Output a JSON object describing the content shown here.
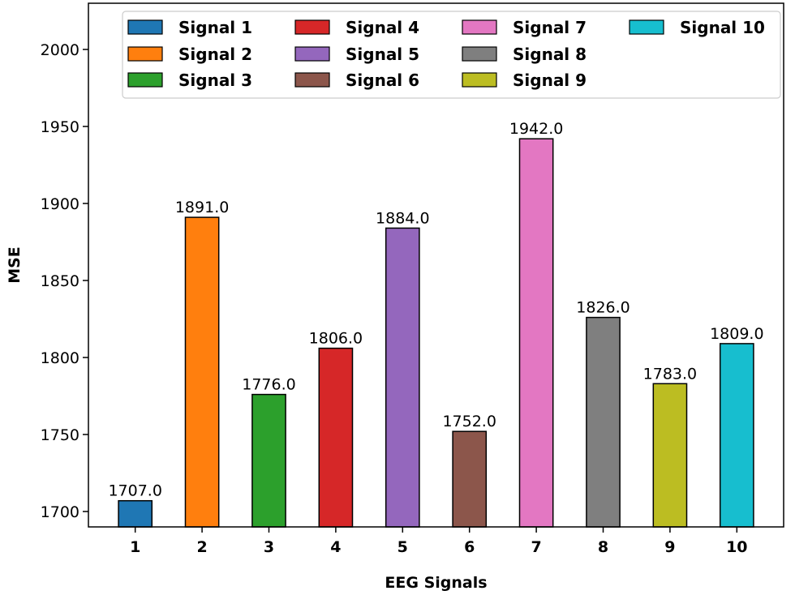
{
  "chart_data": {
    "type": "bar",
    "categories": [
      "1",
      "2",
      "3",
      "4",
      "5",
      "6",
      "7",
      "8",
      "9",
      "10"
    ],
    "values": [
      1707.0,
      1891.0,
      1776.0,
      1806.0,
      1884.0,
      1752.0,
      1942.0,
      1826.0,
      1783.0,
      1809.0
    ],
    "value_labels": [
      "1707.0",
      "1891.0",
      "1776.0",
      "1806.0",
      "1884.0",
      "1752.0",
      "1942.0",
      "1826.0",
      "1783.0",
      "1809.0"
    ],
    "series_names": [
      "Signal 1",
      "Signal 2",
      "Signal 3",
      "Signal 4",
      "Signal 5",
      "Signal 6",
      "Signal 7",
      "Signal 8",
      "Signal 9",
      "Signal 10"
    ],
    "colors": [
      "#1f77b4",
      "#ff7f0e",
      "#2ca02c",
      "#d62728",
      "#9467bd",
      "#8c564b",
      "#e377c2",
      "#7f7f7f",
      "#bcbd22",
      "#17becf"
    ],
    "title": "",
    "xlabel": "EEG Signals",
    "ylabel": "MSE",
    "ylim": [
      1690,
      2030
    ],
    "yticks": [
      1700,
      1750,
      1800,
      1850,
      1900,
      1950,
      2000
    ],
    "ytick_labels": [
      "1700",
      "1750",
      "1800",
      "1850",
      "1900",
      "1950",
      "2000"
    ],
    "grid": false,
    "legend_position": "top"
  }
}
